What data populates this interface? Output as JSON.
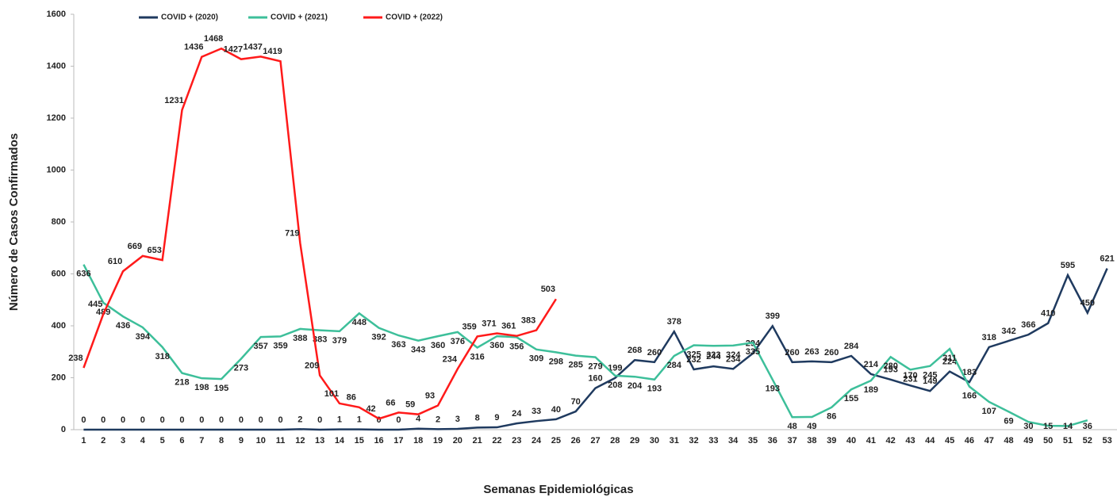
{
  "chart_data": {
    "type": "line",
    "xlabel": "Semanas Epidemiológicas",
    "ylabel": "Número de Casos Confirmados",
    "categories": [
      "1",
      "2",
      "3",
      "4",
      "5",
      "6",
      "7",
      "8",
      "9",
      "10",
      "11",
      "12",
      "13",
      "14",
      "15",
      "16",
      "17",
      "18",
      "19",
      "20",
      "21",
      "22",
      "23",
      "24",
      "25",
      "26",
      "27",
      "28",
      "29",
      "30",
      "31",
      "32",
      "33",
      "34",
      "35",
      "36",
      "37",
      "38",
      "39",
      "40",
      "41",
      "42",
      "43",
      "44",
      "45",
      "46",
      "47",
      "48",
      "49",
      "50",
      "51",
      "52",
      "53"
    ],
    "series": [
      {
        "name": "COVID + (2020)",
        "color": "#1f3a5f",
        "values": [
          0,
          0,
          0,
          0,
          0,
          0,
          0,
          0,
          0,
          0,
          0,
          2,
          0,
          1,
          1,
          0,
          0,
          4,
          2,
          3,
          8,
          9,
          24,
          33,
          40,
          70,
          160,
          199,
          268,
          260,
          378,
          232,
          244,
          234,
          294,
          399,
          260,
          263,
          260,
          284,
          214,
          193,
          170,
          149,
          224,
          183,
          318,
          342,
          366,
          410,
          595,
          450,
          621
        ]
      },
      {
        "name": "COVID + (2021)",
        "color": "#3dbf9a",
        "values": [
          636,
          489,
          436,
          394,
          318,
          218,
          198,
          195,
          273,
          357,
          359,
          388,
          383,
          379,
          448,
          392,
          363,
          343,
          360,
          376,
          316,
          360,
          356,
          309,
          298,
          285,
          279,
          208,
          204,
          193,
          284,
          325,
          323,
          324,
          335,
          193,
          48,
          49,
          86,
          155,
          189,
          280,
          231,
          245,
          311,
          166,
          107,
          69,
          30,
          15,
          14,
          36,
          null
        ]
      },
      {
        "name": "COVID + (2022)",
        "color": "#ff1a1a",
        "values": [
          238,
          445,
          610,
          669,
          653,
          1231,
          1436,
          1468,
          1427,
          1437,
          1419,
          719,
          209,
          101,
          86,
          42,
          66,
          59,
          93,
          234,
          359,
          371,
          361,
          383,
          503,
          null,
          null,
          null,
          null,
          null,
          null,
          null,
          null,
          null,
          null,
          null,
          null,
          null,
          null,
          null,
          null,
          null,
          null,
          null,
          null,
          null,
          null,
          null,
          null,
          null,
          null,
          null,
          null
        ]
      }
    ],
    "ylim": [
      0,
      1600
    ],
    "yticks": [
      0,
      200,
      400,
      600,
      800,
      1000,
      1200,
      1400,
      1600
    ]
  }
}
